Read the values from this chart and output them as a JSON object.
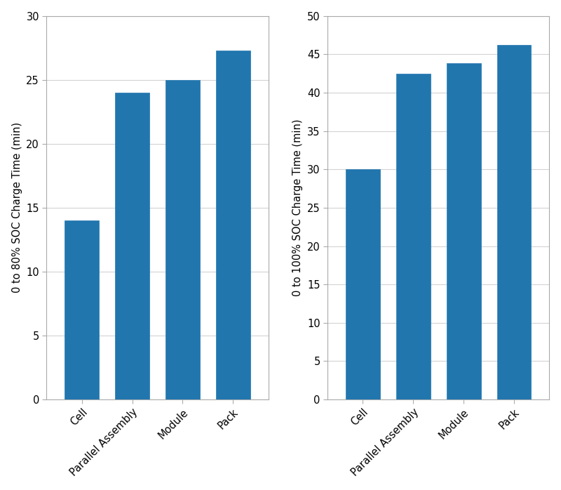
{
  "categories": [
    "Cell",
    "Parallel Assembly",
    "Module",
    "Pack"
  ],
  "chart1": {
    "values": [
      14,
      24,
      25,
      27.3
    ],
    "ylabel": "0 to 80% SOC Charge Time (min)",
    "ylim": [
      0,
      30
    ],
    "yticks": [
      0,
      5,
      10,
      15,
      20,
      25,
      30
    ]
  },
  "chart2": {
    "values": [
      30,
      42.5,
      43.8,
      46.2
    ],
    "ylabel": "0 to 100% SOC Charge Time (min)",
    "ylim": [
      0,
      50
    ],
    "yticks": [
      0,
      5,
      10,
      15,
      20,
      25,
      30,
      35,
      40,
      45,
      50
    ]
  },
  "bar_color": "#2176ae",
  "background_color": "#ffffff",
  "grid_color": "#d3d3d3",
  "tick_label_fontsize": 10.5,
  "ylabel_fontsize": 10.5,
  "bar_width": 0.68
}
